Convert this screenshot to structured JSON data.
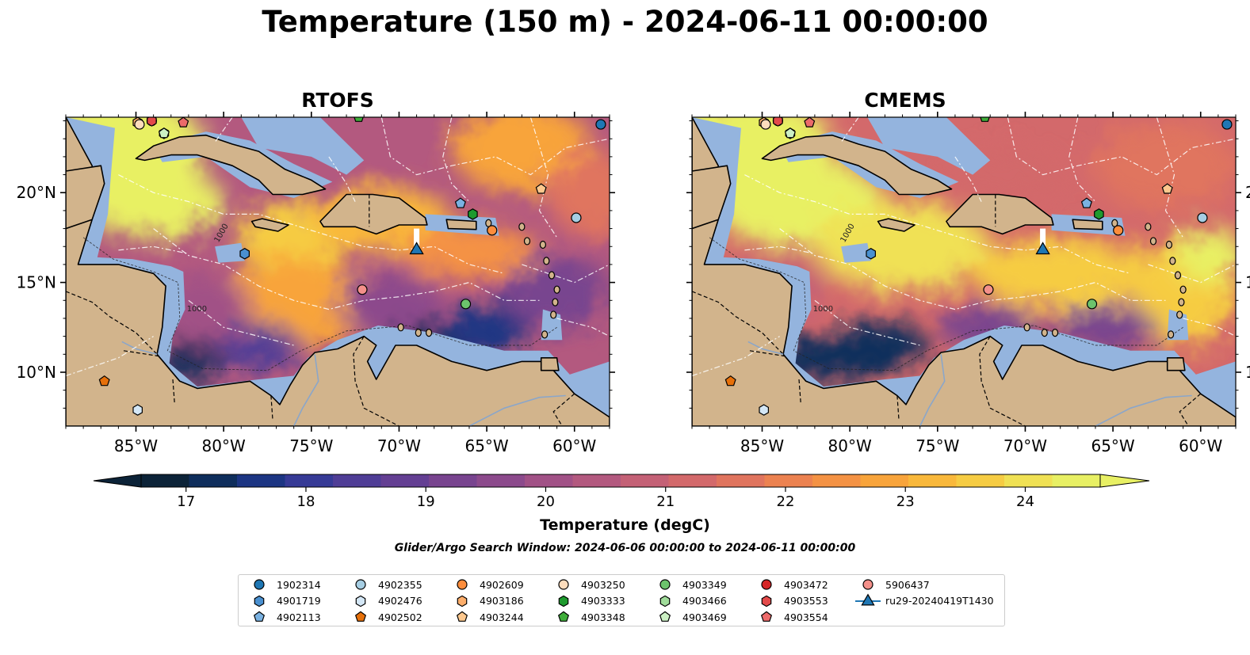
{
  "title": "Temperature (150 m) - 2024-06-11 00:00:00",
  "panels": [
    {
      "name": "RTOFS",
      "variant": "rtofs"
    },
    {
      "name": "CMEMS",
      "variant": "cmems"
    }
  ],
  "map": {
    "lon_ticks": [
      "85°W",
      "80°W",
      "75°W",
      "70°W",
      "65°W",
      "60°W"
    ],
    "lon_tick_values": [
      -85,
      -80,
      -75,
      -70,
      -65,
      -60
    ],
    "lat_ticks": [
      "20°N",
      "15°N",
      "10°N"
    ],
    "lat_tick_values": [
      20,
      15,
      10
    ],
    "lon_range": [
      -89,
      -58
    ],
    "lat_range": [
      7,
      24.2
    ],
    "contour_label": "1000",
    "colors": {
      "land": "#d2b48c",
      "shelf": "#94b4de",
      "deep": "#0c2338",
      "eez_line": "#ffffff"
    }
  },
  "colorbar": {
    "label": "Temperature (degC)",
    "ticks": [
      "17",
      "18",
      "19",
      "20",
      "21",
      "22",
      "23",
      "24"
    ],
    "tick_values": [
      17,
      18,
      19,
      20,
      21,
      22,
      23,
      24
    ],
    "range": [
      16.625,
      24.625
    ],
    "colors": [
      "#0c2338",
      "#0f2e5c",
      "#1c3583",
      "#363a96",
      "#4f3d96",
      "#643f93",
      "#78448f",
      "#8c4a8c",
      "#a15186",
      "#b3597f",
      "#c46176",
      "#d3696b",
      "#e0745e",
      "#ec8250",
      "#f49244",
      "#f8a43b",
      "#f9b83b",
      "#f6cc43",
      "#f0e154",
      "#e8f064"
    ]
  },
  "search_window": "Glider/Argo Search Window: 2024-06-06 00:00:00 to 2024-06-11 00:00:00",
  "legend": [
    {
      "label": "1902314",
      "marker": "circle",
      "color": "#1f77b4"
    },
    {
      "label": "4901719",
      "marker": "hexagon",
      "color": "#4a90d0"
    },
    {
      "label": "4902113",
      "marker": "pentagon",
      "color": "#7ab2e2"
    },
    {
      "label": "4902355",
      "marker": "circle",
      "color": "#a6cee3"
    },
    {
      "label": "4902476",
      "marker": "hexagon",
      "color": "#d4e7f6"
    },
    {
      "label": "4902502",
      "marker": "pentagon",
      "color": "#e6700a"
    },
    {
      "label": "4902609",
      "marker": "circle",
      "color": "#fd8d3c"
    },
    {
      "label": "4903186",
      "marker": "hexagon",
      "color": "#fdae6b"
    },
    {
      "label": "4903244",
      "marker": "pentagon",
      "color": "#fdc88e"
    },
    {
      "label": "4903250",
      "marker": "circle",
      "color": "#fddcbc"
    },
    {
      "label": "4903333",
      "marker": "hexagon",
      "color": "#1e9a2e"
    },
    {
      "label": "4903348",
      "marker": "pentagon",
      "color": "#3fad3a"
    },
    {
      "label": "4903349",
      "marker": "circle",
      "color": "#6cc36c"
    },
    {
      "label": "4903466",
      "marker": "hexagon",
      "color": "#a0dc9a"
    },
    {
      "label": "4903469",
      "marker": "pentagon",
      "color": "#ccf0c4"
    },
    {
      "label": "4903472",
      "marker": "circle",
      "color": "#d62728"
    },
    {
      "label": "4903553",
      "marker": "hexagon",
      "color": "#e34a4a"
    },
    {
      "label": "4903554",
      "marker": "pentagon",
      "color": "#ec6a6a"
    },
    {
      "label": "5906437",
      "marker": "circle",
      "color": "#f4908a"
    },
    {
      "label": "ru29-20240419T1430",
      "marker": "triangle-line",
      "color": "#1f77b4"
    }
  ],
  "platforms": [
    {
      "id": "1902314",
      "lon": -58.5,
      "lat": 23.8
    },
    {
      "id": "4901719",
      "lon": -78.8,
      "lat": 16.6
    },
    {
      "id": "4902113",
      "lon": -66.5,
      "lat": 19.4
    },
    {
      "id": "4902355",
      "lon": -59.9,
      "lat": 18.6
    },
    {
      "id": "4902476",
      "lon": -84.9,
      "lat": 7.9
    },
    {
      "id": "4902502",
      "lon": -86.8,
      "lat": 9.5
    },
    {
      "id": "4902609",
      "lon": -64.7,
      "lat": 17.9
    },
    {
      "id": "4903186",
      "lon": -84.9,
      "lat": 23.9
    },
    {
      "id": "4903244",
      "lon": -61.9,
      "lat": 20.2
    },
    {
      "id": "4903250",
      "lon": -84.8,
      "lat": 23.8
    },
    {
      "id": "4903333",
      "lon": -65.8,
      "lat": 18.8
    },
    {
      "id": "4903348",
      "lon": -72.3,
      "lat": 24.2
    },
    {
      "id": "4903349",
      "lon": -66.2,
      "lat": 13.8
    },
    {
      "id": "4903466",
      "lon": -83.4,
      "lat": 23.3
    },
    {
      "id": "4903469",
      "lon": -83.4,
      "lat": 23.3
    },
    {
      "id": "4903472",
      "lon": -84.1,
      "lat": 24.0
    },
    {
      "id": "4903553",
      "lon": -84.1,
      "lat": 24.0
    },
    {
      "id": "4903554",
      "lon": -82.3,
      "lat": 23.9
    },
    {
      "id": "5906437",
      "lon": -72.1,
      "lat": 14.6
    },
    {
      "id": "ru29-20240419T1430",
      "lon": -69.0,
      "lat": 16.8,
      "track": [
        [
          -69.0,
          18.0
        ],
        [
          -69.0,
          16.8
        ]
      ]
    }
  ]
}
